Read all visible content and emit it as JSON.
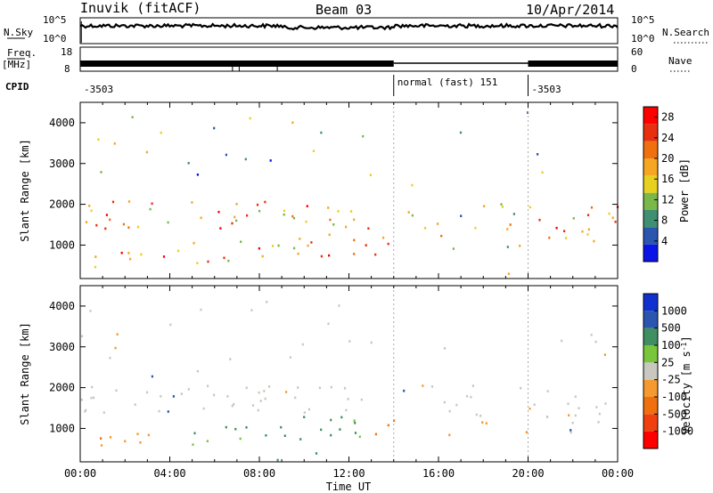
{
  "header": {
    "station": "Inuvik (fitACF)",
    "beam": "Beam 03",
    "date": "10/Apr/2014"
  },
  "panels": {
    "nsky_label": "N.Sky",
    "nsky_ticks": [
      "10^5",
      "10^0"
    ],
    "nsearch_label": "N.Search",
    "nsearch_ticks": [
      "10^5",
      "10^0"
    ],
    "freq_label": "Freq.",
    "freq_unit": "[MHz]",
    "freq_ticks": [
      "18",
      "8"
    ],
    "nave_label": "Nave",
    "nave_ticks": [
      "60",
      "0"
    ],
    "cpid_label": "CPID",
    "cpid_segments": [
      {
        "label": "-3503",
        "start_h": 0,
        "end_h": 14
      },
      {
        "label": "normal (fast) 151",
        "start_h": 14,
        "end_h": 20
      },
      {
        "label": "-3503",
        "start_h": 20,
        "end_h": 24
      }
    ]
  },
  "colors": {
    "power": [
      "#0a14e6",
      "#2b56b0",
      "#3f8f72",
      "#7ab84a",
      "#e8d020",
      "#f5a623",
      "#f07010",
      "#e83010",
      "#ff0000"
    ],
    "velocity": [
      "#ff0000",
      "#f04010",
      "#f07010",
      "#f59a30",
      "#c8c8c0",
      "#7ac63a",
      "#3f8f62",
      "#2b56b0",
      "#1030d0"
    ]
  },
  "chart_data": [
    {
      "type": "heatmap",
      "ylabel": "Slant Range [km]",
      "xlim": [
        0,
        24
      ],
      "ylim": [
        180,
        4500
      ],
      "yticks": [
        "1000",
        "2000",
        "3000",
        "4000"
      ],
      "colorbar": {
        "label": "Power [dB]",
        "ticks": [
          "28",
          "24",
          "20",
          "16",
          "12",
          "8",
          "4"
        ],
        "range": [
          0,
          30
        ]
      }
    },
    {
      "type": "heatmap",
      "xlabel": "Time UT",
      "ylabel": "Slant Range [km]",
      "xlim": [
        0,
        24
      ],
      "ylim": [
        180,
        4500
      ],
      "xticks": [
        "00:00",
        "04:00",
        "08:00",
        "12:00",
        "16:00",
        "20:00",
        "00:00"
      ],
      "yticks": [
        "1000",
        "2000",
        "3000",
        "4000"
      ],
      "colorbar": {
        "label": "Velocity",
        "unit": "[m s",
        "unit_exp": "-1",
        "unit_close": "]",
        "ticks": [
          "1000",
          "500",
          "100",
          "25",
          "-25",
          "-100",
          "-500",
          "-1000"
        ]
      }
    }
  ]
}
